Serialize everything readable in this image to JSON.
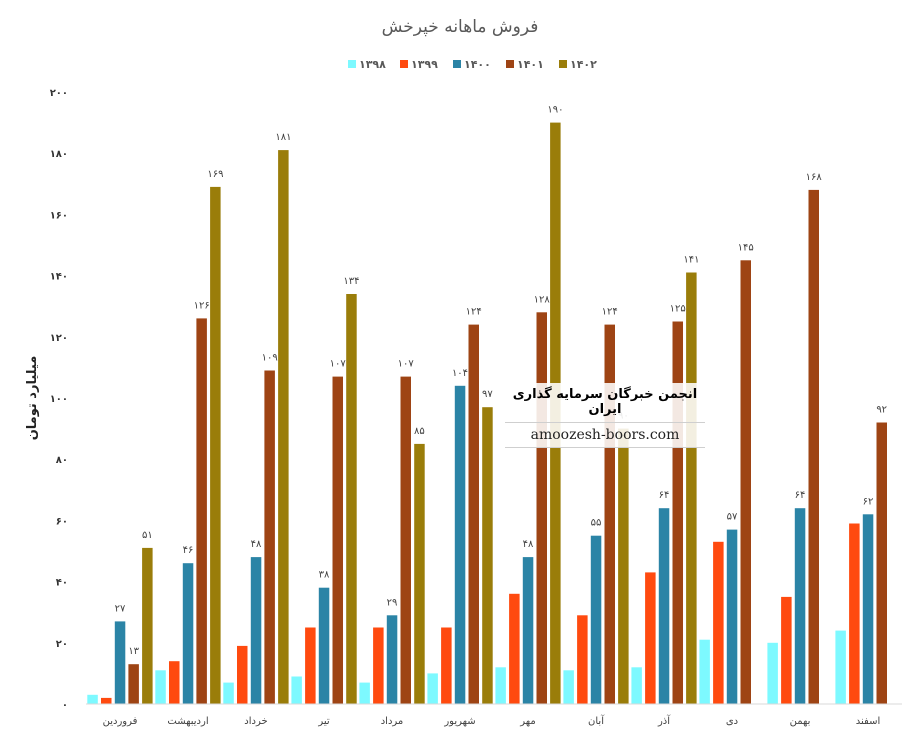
{
  "chart_data": {
    "type": "bar",
    "title": "فروش ماهانه خپرخش",
    "ylabel": "میلیارد تومان",
    "xlabel": "",
    "ylim": [
      0,
      200
    ],
    "yticks": [
      "۰",
      "۲۰",
      "۴۰",
      "۶۰",
      "۸۰",
      "۱۰۰",
      "۱۲۰",
      "۱۴۰",
      "۱۶۰",
      "۱۸۰",
      "۲۰۰"
    ],
    "grid": false,
    "legend_position": "top",
    "categories": [
      "فروردین",
      "اردیبهشت",
      "خرداد",
      "تیر",
      "مرداد",
      "شهریور",
      "مهر",
      "آبان",
      "آذر",
      "دی",
      "بهمن",
      "اسفند"
    ],
    "series": [
      {
        "name": "۱۳۹۸",
        "color": "#7df9ff",
        "values": [
          3,
          11,
          7,
          9,
          7,
          10,
          12,
          11,
          12,
          21,
          20,
          24
        ],
        "labels": [
          "",
          "",
          "",
          "",
          "",
          "",
          "",
          "",
          "",
          "",
          "",
          ""
        ]
      },
      {
        "name": "۱۳۹۹",
        "color": "#ff4a0f",
        "values": [
          2,
          14,
          19,
          25,
          25,
          25,
          36,
          29,
          43,
          53,
          35,
          59
        ],
        "labels": [
          "",
          "",
          "",
          "",
          "",
          "",
          "",
          "",
          "",
          "",
          "",
          ""
        ]
      },
      {
        "name": "۱۴۰۰",
        "color": "#2b84a6",
        "values": [
          27,
          46,
          48,
          38,
          29,
          104,
          48,
          55,
          64,
          57,
          64,
          62
        ],
        "labels": [
          "۲۷",
          "۴۶",
          "۴۸",
          "۳۸",
          "۲۹",
          "۱۰۴",
          "۴۸",
          "۵۵",
          "۶۴",
          "۵۷",
          "۶۴",
          "۶۲"
        ]
      },
      {
        "name": "۱۴۰۱",
        "color": "#9e4414",
        "values": [
          13,
          126,
          109,
          107,
          107,
          124,
          128,
          124,
          125,
          145,
          168,
          92
        ],
        "labels": [
          "۱۳",
          "۱۲۶",
          "۱۰۹",
          "۱۰۷",
          "۱۰۷",
          "۱۲۴",
          "۱۲۸",
          "۱۲۴",
          "۱۲۵",
          "۱۴۵",
          "۱۶۸",
          "۹۲"
        ]
      },
      {
        "name": "۱۴۰۲",
        "color": "#9a7d0a",
        "values": [
          51,
          169,
          181,
          134,
          85,
          97,
          190,
          90,
          141,
          null,
          null,
          null
        ],
        "labels": [
          "۵۱",
          "۱۶۹",
          "۱۸۱",
          "۱۳۴",
          "۸۵",
          "۹۷",
          "۱۹۰",
          "۹۰",
          "۱۴۱",
          "",
          "",
          ""
        ]
      }
    ]
  },
  "watermark": {
    "line1": "انجمن خبرگان سرمایه گذاری ایران",
    "line2": "amoozesh-boors.com"
  }
}
